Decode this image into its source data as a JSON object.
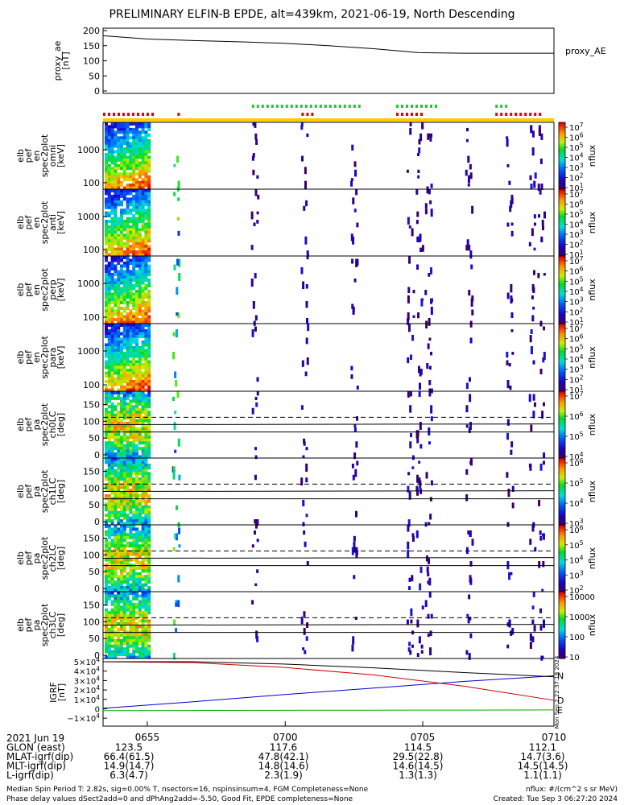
{
  "title": "PRELIMINARY ELFIN-B EPDE, alt=439km, 2021-06-19, North Descending",
  "chart_data": {
    "type": "spectrogram-stack",
    "proxy_ae": {
      "ylabel": [
        "proxy_ae",
        "[nT]"
      ],
      "legend": "proxy_AE",
      "ylim": [
        0,
        200
      ],
      "yticks": [
        "200",
        "150",
        "100",
        "50",
        "0"
      ],
      "x": [
        0,
        0.1,
        0.2,
        0.3,
        0.4,
        0.5,
        0.6,
        0.7,
        0.8,
        0.9,
        1.0
      ],
      "values": [
        183,
        172,
        167,
        163,
        158,
        150,
        140,
        127,
        125,
        125,
        125
      ]
    },
    "flags": {
      "red_ranges": [
        [
          0.0,
          0.11
        ],
        [
          0.165,
          0.17
        ],
        [
          0.44,
          0.47
        ],
        [
          0.65,
          0.71
        ],
        [
          0.87,
          0.97
        ]
      ],
      "green_ranges": [
        [
          0.33,
          0.57
        ],
        [
          0.65,
          0.74
        ],
        [
          0.87,
          0.9
        ]
      ]
    },
    "energy_panels": [
      {
        "label": [
          "elb",
          "pef",
          "en",
          "spec2plot",
          "omni",
          "[keV]"
        ],
        "yticks": [
          "1000",
          "100"
        ],
        "cbar_ticks": [
          "10^7",
          "10^6",
          "10^5",
          "10^4",
          "10^3",
          "10^2",
          "10^1"
        ],
        "cbar_label": "nflux"
      },
      {
        "label": [
          "elb",
          "pef",
          "en",
          "spec2plot",
          "anti",
          "[keV]"
        ],
        "yticks": [
          "1000",
          "100"
        ],
        "cbar_ticks": [
          "10^7",
          "10^6",
          "10^5",
          "10^4",
          "10^3",
          "10^2",
          "10^1"
        ],
        "cbar_label": "nflux"
      },
      {
        "label": [
          "elb",
          "pef",
          "en",
          "spec2plot",
          "perp",
          "[keV]"
        ],
        "yticks": [
          "1000",
          "100"
        ],
        "cbar_ticks": [
          "10^7",
          "10^6",
          "10^5",
          "10^4",
          "10^3",
          "10^2",
          "10^1"
        ],
        "cbar_label": "nflux"
      },
      {
        "label": [
          "elb",
          "pef",
          "en",
          "spec2plot",
          "para",
          "[keV]"
        ],
        "yticks": [
          "1000",
          "100"
        ],
        "cbar_ticks": [
          "10^7",
          "10^6",
          "10^5",
          "10^4",
          "10^3",
          "10^2",
          "10^1"
        ],
        "cbar_label": "nflux"
      }
    ],
    "pitch_panels": [
      {
        "label": [
          "elb",
          "pef",
          "pa",
          "spec2plot",
          "ch0LC",
          "[deg]"
        ],
        "yticks": [
          "150",
          "100",
          "50",
          "0"
        ],
        "cbar_ticks": [
          "10^7",
          "10^6",
          "10^5",
          "10^4"
        ],
        "cbar_label": "nflux"
      },
      {
        "label": [
          "elb",
          "pef",
          "pa",
          "spec2plot",
          "ch1LC",
          "[deg]"
        ],
        "yticks": [
          "150",
          "100",
          "50",
          "0"
        ],
        "cbar_ticks": [
          "10^6",
          "10^5",
          "10^4",
          "10^3"
        ],
        "cbar_label": "nflux"
      },
      {
        "label": [
          "elb",
          "pef",
          "pa",
          "spec2plot",
          "ch2LC",
          "[deg]"
        ],
        "yticks": [
          "150",
          "100",
          "50",
          "0"
        ],
        "cbar_ticks": [
          "10^6",
          "10^5",
          "10^4",
          "10^3",
          "10^2"
        ],
        "cbar_label": "nflux"
      },
      {
        "label": [
          "elb",
          "pef",
          "pa",
          "spec2plot",
          "ch3LC",
          "[deg]"
        ],
        "yticks": [
          "150",
          "100",
          "50",
          "0"
        ],
        "cbar_ticks": [
          "10000",
          "1000",
          "100",
          "10"
        ],
        "cbar_label": "nflux"
      }
    ],
    "igrf": {
      "ylabel": [
        "IGRF",
        "[nT]"
      ],
      "yticks": [
        "5×10^4",
        "4×10^4",
        "3×10^4",
        "2×10^4",
        "1×10^4",
        "0",
        "−1×10^4"
      ],
      "ylim": [
        -15000,
        50000
      ],
      "x": [
        0,
        0.2,
        0.4,
        0.6,
        0.8,
        1.0
      ],
      "series": [
        {
          "name": "N",
          "color": "#0000cc",
          "values": [
            500,
            7500,
            15000,
            22000,
            29000,
            35000
          ]
        },
        {
          "name": "D",
          "color": "#cc0000",
          "values": [
            50000,
            49000,
            44000,
            36000,
            24000,
            9000
          ]
        },
        {
          "name": "E",
          "color": "#00aa00",
          "values": [
            -2000,
            -1800,
            -1600,
            -1500,
            -1400,
            -1200
          ]
        },
        {
          "name": "",
          "color": "#000000",
          "values": [
            50000,
            50000,
            47500,
            43500,
            38500,
            34000
          ]
        }
      ],
      "side_stamp": "Mon Sep  2 22:37:18 2024"
    },
    "xaxis": {
      "ticks": [
        "0655",
        "0700",
        "0705",
        "0710"
      ],
      "tick_pos": [
        0.098,
        0.404,
        0.709,
        1.0
      ]
    },
    "orbit_table": {
      "rows": [
        {
          "name": "2021 Jun 19",
          "vals": [
            "",
            "",
            "",
            ""
          ]
        },
        {
          "name": "GLON (east)",
          "vals": [
            "123.5",
            "117.6",
            "114.5",
            "112.1"
          ]
        },
        {
          "name": "MLAT-igrf(dip)",
          "vals": [
            "66.4(61.5)",
            "47.8(42.1)",
            "29.5(22.8)",
            "14.7(3.6)"
          ]
        },
        {
          "name": "MLT-igrf(dip)",
          "vals": [
            "14.9(14.7)",
            "14.8(14.6)",
            "14.6(14.5)",
            "14.5(14.5)"
          ]
        },
        {
          "name": "L-igrf(dip)",
          "vals": [
            "6.3(4.7)",
            "2.3(1.9)",
            "1.3(1.3)",
            "1.1(1.1)"
          ]
        }
      ]
    }
  },
  "footer": {
    "line1": "Median Spin Period T: 2.82s, sig=0.00% T, nsectors=16, nspinsinsum=4, FGM Completeness=None",
    "line2": "Phase delay values dSect2add=0 and dPhAng2add=-5.50, Good Fit, EPDE completeness=None",
    "right1": "nflux: #/(cm^2 s sr MeV)",
    "right2": "Created: Tue Sep  3 06:27:20 2024"
  }
}
